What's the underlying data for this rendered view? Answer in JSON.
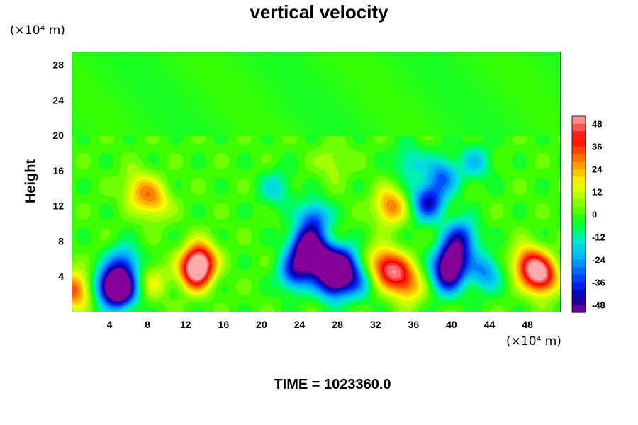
{
  "chart_data": {
    "type": "heatmap",
    "title": "vertical velocity",
    "xlabel": "",
    "ylabel": "Height",
    "x_unit": "(×10⁴ m)",
    "y_unit": "(×10⁴ m)",
    "xlim": [
      0,
      51.5
    ],
    "ylim": [
      0,
      29.5
    ],
    "x_ticks": [
      4,
      8,
      12,
      16,
      20,
      24,
      28,
      32,
      36,
      40,
      44,
      48
    ],
    "y_ticks": [
      4,
      8,
      12,
      16,
      20,
      24,
      28
    ],
    "colorbar": {
      "ticks": [
        48,
        36,
        24,
        12,
        0,
        -12,
        -24,
        -36,
        -48
      ],
      "range": [
        -52,
        52
      ]
    },
    "features": [
      {
        "x": 13,
        "y": 4.5,
        "value": 44
      },
      {
        "x": 13.5,
        "y": 6,
        "value": 38
      },
      {
        "x": 49.5,
        "y": 4,
        "value": 46
      },
      {
        "x": 48,
        "y": 5.5,
        "value": 36
      },
      {
        "x": 0.3,
        "y": 2.5,
        "value": 34
      },
      {
        "x": 34,
        "y": 4.5,
        "value": 34
      },
      {
        "x": 32.5,
        "y": 5.5,
        "value": 26
      },
      {
        "x": 35.5,
        "y": 3,
        "value": 24
      },
      {
        "x": 33.5,
        "y": 12,
        "value": 30
      },
      {
        "x": 8.7,
        "y": 12.5,
        "value": 22
      },
      {
        "x": 7,
        "y": 14,
        "value": 20
      },
      {
        "x": 8.5,
        "y": 3.5,
        "value": 14
      },
      {
        "x": 27.5,
        "y": 17,
        "value": 10
      },
      {
        "x": 5.2,
        "y": 2.5,
        "value": -50
      },
      {
        "x": 4,
        "y": 3,
        "value": -40
      },
      {
        "x": 5.5,
        "y": 5.5,
        "value": -30
      },
      {
        "x": 26,
        "y": 6,
        "value": -52
      },
      {
        "x": 24.5,
        "y": 7.5,
        "value": -44
      },
      {
        "x": 27.5,
        "y": 3.5,
        "value": -48
      },
      {
        "x": 23.5,
        "y": 4.5,
        "value": -38
      },
      {
        "x": 25.5,
        "y": 10.5,
        "value": -32
      },
      {
        "x": 28.5,
        "y": 5.5,
        "value": -42
      },
      {
        "x": 30,
        "y": 3.5,
        "value": -22
      },
      {
        "x": 21.5,
        "y": 14,
        "value": -16
      },
      {
        "x": 40,
        "y": 6,
        "value": -48
      },
      {
        "x": 39.5,
        "y": 4,
        "value": -38
      },
      {
        "x": 41,
        "y": 8.5,
        "value": -34
      },
      {
        "x": 43.5,
        "y": 4.5,
        "value": -26
      },
      {
        "x": 37.5,
        "y": 12.5,
        "value": -40
      },
      {
        "x": 39,
        "y": 15.5,
        "value": -28
      },
      {
        "x": 42.5,
        "y": 17,
        "value": -18
      },
      {
        "x": 35.5,
        "y": 17,
        "value": -16
      }
    ]
  },
  "time_label": "TIME =",
  "time_value": "1023360.0"
}
